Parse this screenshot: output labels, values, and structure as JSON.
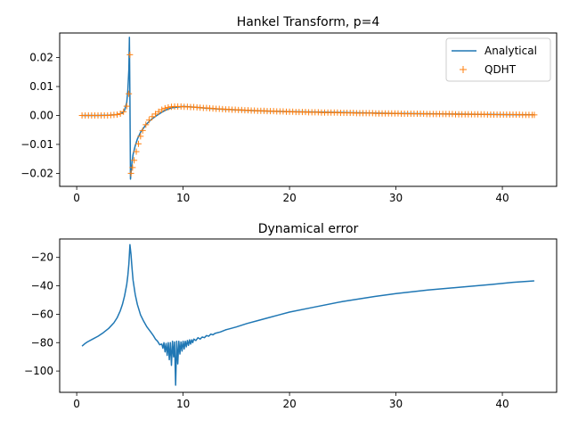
{
  "chart_data": [
    {
      "type": "line",
      "title": "Hankel Transform, p=4",
      "xlabel": "",
      "ylabel": "",
      "xlim": [
        -1.6,
        45.1
      ],
      "ylim": [
        -0.0245,
        0.0285
      ],
      "xticks": [
        0,
        10,
        20,
        30,
        40
      ],
      "yticks": [
        -0.02,
        -0.01,
        0.0,
        0.01,
        0.02
      ],
      "xtick_labels": [
        "0",
        "10",
        "20",
        "30",
        "40"
      ],
      "ytick_labels": [
        "−0.02",
        "−0.01",
        "0.00",
        "0.01",
        "0.02"
      ],
      "grid": false,
      "legend": "top-right",
      "legend_entries": [
        "Analytical",
        "QDHT"
      ],
      "series": [
        {
          "name": "Analytical",
          "style": "line",
          "color": "#1f77b4",
          "x": [
            0.5,
            1.0,
            2.0,
            3.0,
            3.5,
            4.0,
            4.3,
            4.5,
            4.7,
            4.8,
            4.9,
            4.95,
            5.0,
            5.05,
            5.1,
            5.15,
            5.2,
            5.3,
            5.5,
            5.7,
            6.0,
            6.5,
            7.0,
            7.5,
            8.0,
            8.5,
            9.0,
            10.0,
            11.0,
            12.0,
            13.0,
            15.0,
            17.0,
            20.0,
            25.0,
            30.0,
            35.0,
            40.0,
            43.0
          ],
          "y": [
            0.0,
            0.0,
            0.0,
            0.0001,
            0.0002,
            0.0004,
            0.0009,
            0.0018,
            0.0045,
            0.0085,
            0.016,
            0.027,
            0.005,
            -0.022,
            -0.02,
            -0.018,
            -0.016,
            -0.0135,
            -0.0105,
            -0.0082,
            -0.0058,
            -0.0032,
            -0.0014,
            -0.0001,
            0.0011,
            0.0021,
            0.0027,
            0.0031,
            0.0029,
            0.0026,
            0.0023,
            0.0019,
            0.0016,
            0.0013,
            0.001,
            0.0007,
            0.0005,
            0.0003,
            0.0002
          ]
        },
        {
          "name": "QDHT",
          "style": "marker",
          "marker": "+",
          "color": "#ff7f0e",
          "x": [
            0.5,
            0.8,
            1.1,
            1.4,
            1.7,
            2.0,
            2.3,
            2.6,
            2.9,
            3.2,
            3.5,
            3.8,
            4.1,
            4.4,
            4.7,
            4.9,
            5.0,
            5.1,
            5.25,
            5.4,
            5.6,
            5.8,
            6.0,
            6.2,
            6.5,
            6.8,
            7.1,
            7.4,
            7.7,
            8.0,
            8.3,
            8.6,
            8.9,
            9.2,
            9.5,
            9.8,
            10.1,
            10.4,
            10.7,
            11.0,
            11.3,
            11.6,
            11.9,
            12.2,
            12.5,
            12.8,
            13.1,
            13.4,
            13.7,
            14.0,
            14.3,
            14.6,
            14.9,
            15.2,
            15.5,
            15.8,
            16.1,
            16.4,
            16.7,
            17.0,
            17.3,
            17.6,
            17.9,
            18.2,
            18.5,
            18.8,
            19.1,
            19.4,
            19.7,
            20.0,
            20.3,
            20.6,
            20.9,
            21.2,
            21.5,
            21.8,
            22.1,
            22.4,
            22.7,
            23.0,
            23.3,
            23.6,
            23.9,
            24.2,
            24.5,
            24.8,
            25.1,
            25.4,
            25.7,
            26.0,
            26.3,
            26.6,
            26.9,
            27.2,
            27.5,
            27.8,
            28.1,
            28.4,
            28.7,
            29.0,
            29.3,
            29.6,
            29.9,
            30.2,
            30.5,
            30.8,
            31.1,
            31.4,
            31.7,
            32.0,
            32.3,
            32.6,
            32.9,
            33.2,
            33.5,
            33.8,
            34.1,
            34.4,
            34.7,
            35.0,
            35.3,
            35.6,
            35.9,
            36.2,
            36.5,
            36.8,
            37.1,
            37.4,
            37.7,
            38.0,
            38.3,
            38.6,
            38.9,
            39.2,
            39.5,
            39.8,
            40.1,
            40.4,
            40.7,
            41.0,
            41.3,
            41.6,
            41.9,
            42.2,
            42.5,
            42.8,
            43.0
          ],
          "y": [
            0.0,
            0.0,
            0.0,
            0.0,
            0.0,
            0.0,
            0.0,
            0.0,
            0.0,
            0.0001,
            0.0002,
            0.0003,
            0.0006,
            0.0013,
            0.0032,
            0.0075,
            0.021,
            -0.02,
            -0.018,
            -0.0155,
            -0.0125,
            -0.0098,
            -0.0072,
            -0.0052,
            -0.0032,
            -0.0016,
            -0.0004,
            0.0005,
            0.0013,
            0.002,
            0.0025,
            0.0028,
            0.003,
            0.0031,
            0.0031,
            0.0031,
            0.003,
            0.003,
            0.0029,
            0.0029,
            0.0028,
            0.0027,
            0.0026,
            0.0026,
            0.0025,
            0.0024,
            0.0023,
            0.0023,
            0.0022,
            0.0021,
            0.0021,
            0.002,
            0.002,
            0.0019,
            0.0019,
            0.0018,
            0.0018,
            0.0017,
            0.0017,
            0.0016,
            0.0016,
            0.0016,
            0.0015,
            0.0015,
            0.0015,
            0.0014,
            0.0014,
            0.0014,
            0.0013,
            0.0013,
            0.0013,
            0.0012,
            0.0012,
            0.0012,
            0.0012,
            0.0011,
            0.0011,
            0.0011,
            0.0011,
            0.001,
            0.001,
            0.001,
            0.001,
            0.001,
            0.001,
            0.0009,
            0.0009,
            0.0009,
            0.0009,
            0.0009,
            0.0008,
            0.0008,
            0.0008,
            0.0008,
            0.0008,
            0.0008,
            0.0007,
            0.0007,
            0.0007,
            0.0007,
            0.0007,
            0.0007,
            0.0007,
            0.0007,
            0.0006,
            0.0006,
            0.0006,
            0.0006,
            0.0006,
            0.0006,
            0.0006,
            0.0006,
            0.0005,
            0.0005,
            0.0005,
            0.0005,
            0.0005,
            0.0005,
            0.0005,
            0.0005,
            0.0005,
            0.0004,
            0.0004,
            0.0004,
            0.0004,
            0.0004,
            0.0004,
            0.0004,
            0.0004,
            0.0004,
            0.0004,
            0.0003,
            0.0003,
            0.0003,
            0.0003,
            0.0003,
            0.0003,
            0.0003,
            0.0003,
            0.0003,
            0.0003,
            0.0003,
            0.0002,
            0.0002,
            0.0002,
            0.0002,
            0.0002
          ]
        }
      ]
    },
    {
      "type": "line",
      "title": "Dynamical error",
      "xlabel": "",
      "ylabel": "",
      "xlim": [
        -1.6,
        45.1
      ],
      "ylim": [
        -115,
        -7
      ],
      "xticks": [
        0,
        10,
        20,
        30,
        40
      ],
      "yticks": [
        -100,
        -80,
        -60,
        -40,
        -20
      ],
      "xtick_labels": [
        "0",
        "10",
        "20",
        "30",
        "40"
      ],
      "ytick_labels": [
        "−100",
        "−80",
        "−60",
        "−40",
        "−20"
      ],
      "grid": false,
      "legend": "none",
      "series": [
        {
          "style": "line",
          "color": "#1f77b4",
          "x": [
            0.5,
            0.8,
            1.0,
            1.5,
            2.0,
            2.5,
            3.0,
            3.5,
            3.8,
            4.1,
            4.3,
            4.5,
            4.7,
            4.8,
            4.9,
            5.0,
            5.1,
            5.2,
            5.3,
            5.5,
            5.7,
            6.0,
            6.3,
            6.6,
            7.0,
            7.2,
            7.4,
            7.6,
            7.8,
            8.0,
            8.1,
            8.2,
            8.3,
            8.4,
            8.5,
            8.6,
            8.7,
            8.8,
            8.9,
            9.0,
            9.1,
            9.2,
            9.3,
            9.4,
            9.5,
            9.6,
            9.7,
            9.8,
            9.9,
            10.0,
            10.1,
            10.2,
            10.3,
            10.4,
            10.5,
            10.6,
            10.7,
            10.8,
            10.9,
            11.0,
            11.2,
            11.4,
            11.6,
            11.8,
            12.0,
            12.2,
            12.4,
            12.6,
            12.8,
            13.0,
            13.5,
            14.0,
            14.5,
            15.0,
            16.0,
            17.0,
            18.0,
            19.0,
            20.0,
            22.0,
            25.0,
            28.0,
            30.0,
            33.0,
            36.0,
            39.0,
            41.0,
            43.0
          ],
          "y": [
            -82.5,
            -80.5,
            -79.5,
            -77.5,
            -75.5,
            -73.0,
            -70.0,
            -66.0,
            -62.5,
            -57.5,
            -53.0,
            -47.0,
            -39.0,
            -33.0,
            -24.5,
            -11.0,
            -18.0,
            -28.0,
            -36.0,
            -46.0,
            -53.0,
            -60.5,
            -65.0,
            -69.0,
            -73.0,
            -75.0,
            -77.5,
            -79.0,
            -81.5,
            -81.0,
            -84.0,
            -80.0,
            -86.5,
            -80.5,
            -89.0,
            -80.0,
            -92.0,
            -80.0,
            -96.0,
            -79.0,
            -90.0,
            -79.5,
            -110.0,
            -79.0,
            -95.0,
            -79.0,
            -88.0,
            -79.5,
            -86.0,
            -79.0,
            -84.5,
            -79.0,
            -83.0,
            -78.5,
            -82.0,
            -78.0,
            -81.0,
            -78.0,
            -80.0,
            -77.5,
            -78.5,
            -76.5,
            -77.5,
            -76.0,
            -76.5,
            -75.0,
            -75.5,
            -74.0,
            -74.5,
            -73.5,
            -72.5,
            -71.0,
            -70.0,
            -69.0,
            -66.5,
            -64.5,
            -62.5,
            -60.5,
            -58.5,
            -55.5,
            -51.0,
            -47.5,
            -45.5,
            -43.0,
            -41.0,
            -39.0,
            -37.5,
            -36.5
          ]
        }
      ]
    }
  ]
}
